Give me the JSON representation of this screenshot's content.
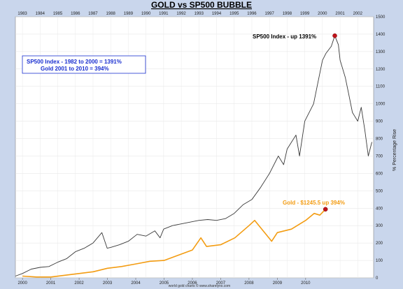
{
  "chart_data": {
    "type": "line",
    "title": "GOLD vs SP500 BUBBLE",
    "ylabel": "% Percentage Rise",
    "ylim": [
      0,
      1500
    ],
    "y_ticks": [
      0,
      100,
      200,
      300,
      400,
      500,
      600,
      700,
      800,
      900,
      1000,
      1100,
      1200,
      1300,
      1400,
      1500
    ],
    "x_top_labels": [
      "1983",
      "1984",
      "1985",
      "1986",
      "1987",
      "1988",
      "1989",
      "1990",
      "1991",
      "1992",
      "1993",
      "1994",
      "1995",
      "1996",
      "1997",
      "1998",
      "1999",
      "2000",
      "2001",
      "2002"
    ],
    "x_bottom_labels": [
      "2000",
      "2001",
      "2002",
      "2003",
      "2004",
      "2005",
      "2006",
      "2007",
      "2008",
      "2009",
      "2010"
    ],
    "legend": {
      "line1": "SP500 Index - 1982 to 2000  =  1391%",
      "line2": "Gold  2001 to 2010  =  394%"
    },
    "annotations": {
      "sp500": "SP500 Index - up 1391%",
      "gold": "Gold - $1245.5 up 394%"
    },
    "footer": "world gold charts © www.sharelynx.com",
    "series": [
      {
        "name": "SP500 Index",
        "color": "#3a3a3a",
        "x_axis": "top",
        "x": [
          1982.6,
          1983.0,
          1983.5,
          1984.0,
          1984.5,
          1985.0,
          1985.5,
          1986.0,
          1986.5,
          1987.0,
          1987.5,
          1987.8,
          1988.0,
          1988.5,
          1989.0,
          1989.5,
          1990.0,
          1990.5,
          1990.8,
          1991.0,
          1991.5,
          1992.0,
          1992.5,
          1993.0,
          1993.5,
          1994.0,
          1994.5,
          1995.0,
          1995.5,
          1996.0,
          1996.5,
          1997.0,
          1997.5,
          1997.8,
          1998.0,
          1998.5,
          1998.7,
          1999.0,
          1999.5,
          1999.8,
          2000.0,
          2000.2,
          2000.5,
          2000.7,
          2000.9,
          2001.0,
          2001.3,
          2001.5,
          2001.7,
          2002.0,
          2002.2,
          2002.4,
          2002.6,
          2002.8
        ],
        "values": [
          10,
          25,
          50,
          60,
          65,
          90,
          110,
          150,
          170,
          200,
          260,
          170,
          175,
          190,
          210,
          250,
          240,
          270,
          230,
          280,
          300,
          310,
          320,
          330,
          335,
          330,
          340,
          370,
          420,
          450,
          520,
          600,
          700,
          650,
          740,
          820,
          700,
          900,
          1000,
          1150,
          1250,
          1290,
          1330,
          1391,
          1340,
          1250,
          1150,
          1050,
          950,
          900,
          980,
          850,
          700,
          780
        ]
      },
      {
        "name": "Gold",
        "color": "#f39c12",
        "x_axis": "bottom",
        "x": [
          2000.0,
          2000.5,
          2001.0,
          2001.5,
          2002.0,
          2002.5,
          2003.0,
          2003.5,
          2004.0,
          2004.5,
          2005.0,
          2005.5,
          2006.0,
          2006.3,
          2006.5,
          2007.0,
          2007.5,
          2008.0,
          2008.2,
          2008.5,
          2008.8,
          2009.0,
          2009.5,
          2010.0,
          2010.3,
          2010.5,
          2010.7
        ],
        "values": [
          10,
          5,
          5,
          15,
          25,
          35,
          55,
          65,
          80,
          95,
          100,
          130,
          160,
          230,
          180,
          190,
          230,
          300,
          330,
          270,
          210,
          260,
          280,
          330,
          370,
          360,
          394
        ]
      }
    ]
  }
}
